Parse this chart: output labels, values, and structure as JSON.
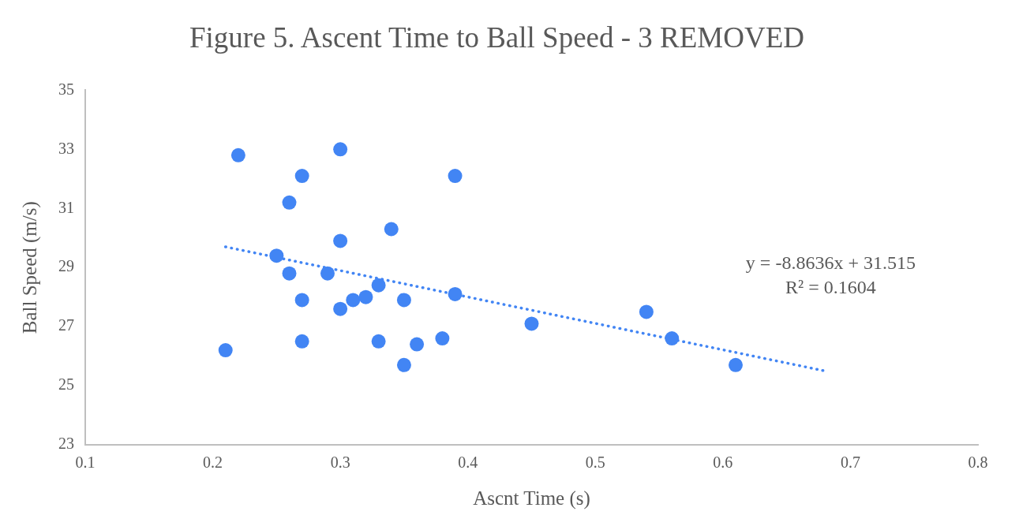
{
  "chart_data": {
    "type": "scatter",
    "title": "Figure 5. Ascent Time to Ball Speed - 3 REMOVED",
    "xlabel": "Ascnt Time (s)",
    "ylabel": "Ball Speed (m/s)",
    "annotations": [
      "y = -8.8636x + 31.515",
      "R² = 0.1604"
    ],
    "series": [
      {
        "color": "#4285f4",
        "marker": "circle",
        "x": [
          0.22,
          0.3,
          0.27,
          0.39,
          0.26,
          0.34,
          0.3,
          0.25,
          0.26,
          0.29,
          0.33,
          0.39,
          0.27,
          0.31,
          0.32,
          0.35,
          0.3,
          0.27,
          0.33,
          0.36,
          0.38,
          0.35,
          0.21,
          0.45,
          0.54,
          0.56,
          0.61
        ],
        "values": [
          32.8,
          33.0,
          32.1,
          32.1,
          31.2,
          30.3,
          29.9,
          29.4,
          28.8,
          28.8,
          28.4,
          28.1,
          27.9,
          27.9,
          28.0,
          27.9,
          27.6,
          26.5,
          26.5,
          26.4,
          26.6,
          25.7,
          26.2,
          27.1,
          27.5,
          26.6,
          25.7
        ]
      },
      {
        "type": "line",
        "color": "#4285f4",
        "marker": "none",
        "line_style": "dotted",
        "x": [
          0.21,
          0.68
        ],
        "values": [
          29.7,
          25.5
        ]
      }
    ],
    "xlim": [
      0.1,
      0.8
    ],
    "xticks": [
      0.1,
      0.2,
      0.3,
      0.4,
      0.5,
      0.6,
      0.7,
      0.8
    ],
    "ylim": [
      23,
      35
    ],
    "yticks": [
      23,
      25,
      27,
      29,
      31,
      33,
      35
    ],
    "grid": false,
    "legend": false
  }
}
